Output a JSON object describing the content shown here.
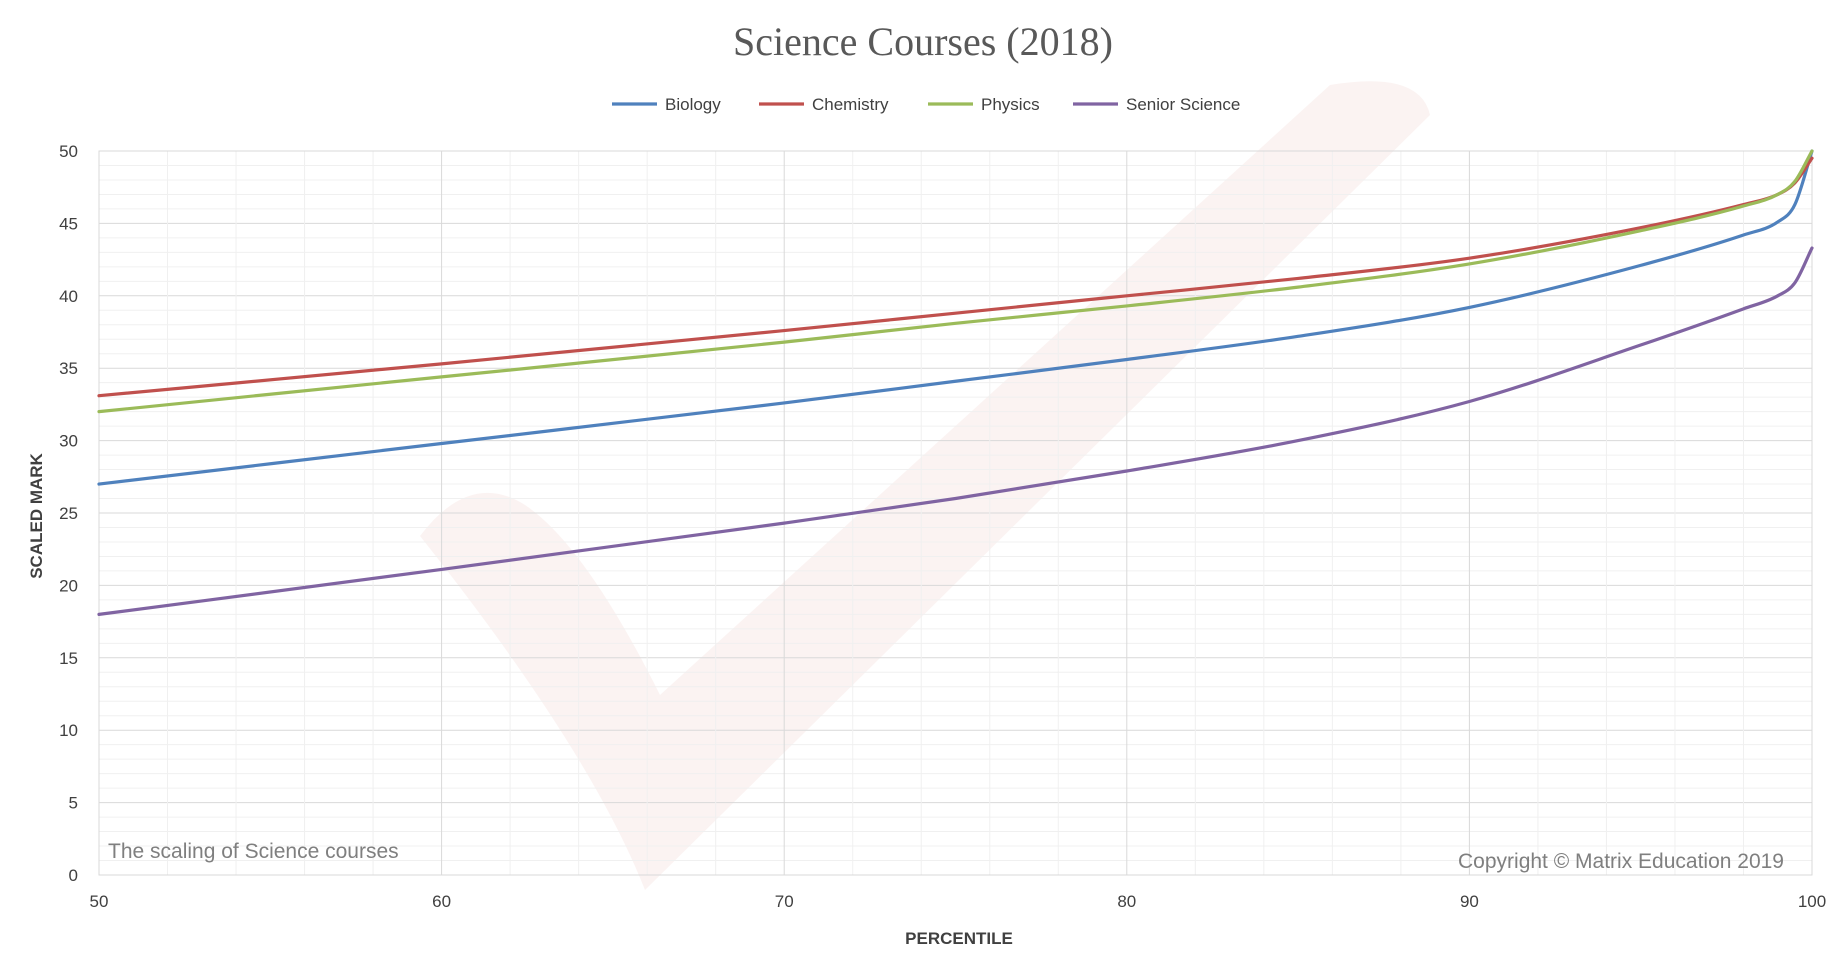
{
  "chart_data": {
    "type": "line",
    "title": "Science Courses (2018)",
    "xlabel": "PERCENTILE",
    "ylabel": "SCALED MARK",
    "xlim": [
      50,
      100
    ],
    "ylim": [
      0,
      50
    ],
    "x_ticks": [
      "50",
      "60",
      "70",
      "80",
      "90",
      "100"
    ],
    "y_ticks": [
      "0",
      "5",
      "10",
      "15",
      "20",
      "25",
      "30",
      "35",
      "40",
      "45",
      "50"
    ],
    "grid": true,
    "legend_position": "top",
    "annotation_left": "The scaling of Science courses",
    "annotation_right": "Copyright © Matrix Education 2019",
    "x": [
      50,
      60,
      70,
      75,
      80,
      85,
      90,
      95,
      98,
      99,
      99.5,
      100
    ],
    "series": [
      {
        "name": "Biology",
        "color": "#4f81bd",
        "values": [
          27.0,
          29.8,
          32.6,
          34.1,
          35.6,
          37.2,
          39.2,
          42.1,
          44.2,
          45.1,
          46.3,
          50.0
        ]
      },
      {
        "name": "Chemistry",
        "color": "#c0504d",
        "values": [
          33.1,
          35.3,
          37.6,
          38.8,
          40.0,
          41.2,
          42.6,
          44.7,
          46.3,
          47.0,
          47.8,
          49.5
        ]
      },
      {
        "name": "Physics",
        "color": "#9bbb59",
        "values": [
          32.0,
          34.4,
          36.8,
          38.1,
          39.3,
          40.6,
          42.2,
          44.5,
          46.2,
          47.0,
          47.9,
          50.0
        ]
      },
      {
        "name": "Senior Science",
        "color": "#8064a2",
        "values": [
          18.0,
          21.1,
          24.3,
          26.0,
          27.9,
          30.0,
          32.7,
          36.6,
          39.1,
          40.0,
          40.9,
          43.3
        ]
      }
    ]
  }
}
